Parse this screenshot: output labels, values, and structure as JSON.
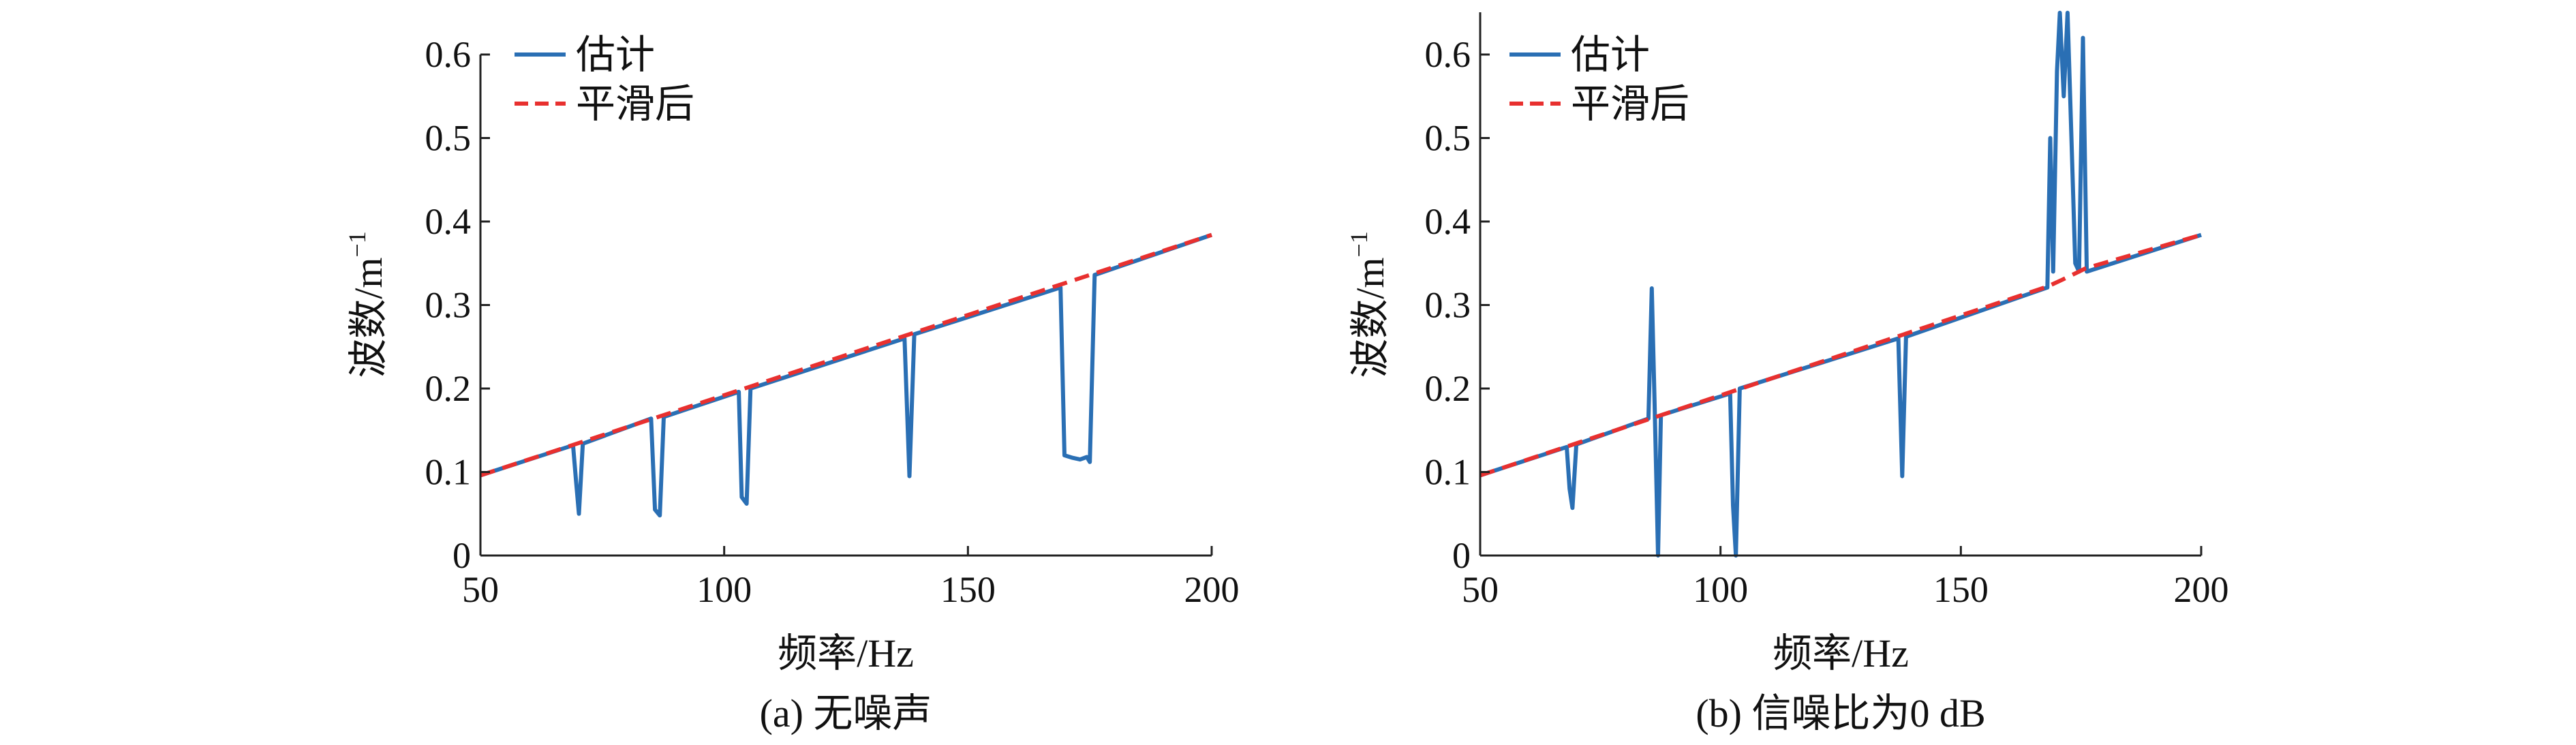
{
  "chart_data": [
    {
      "type": "line",
      "caption": "(a) 无噪声",
      "xlabel": "频率/Hz",
      "ylabel": "波数/m",
      "ylabel_sup": "−1",
      "xlim": [
        50,
        200
      ],
      "ylim": [
        0,
        0.6
      ],
      "xticks": [
        50,
        100,
        150,
        200
      ],
      "yticks": [
        0,
        0.1,
        0.2,
        0.3,
        0.4,
        0.5,
        0.6
      ],
      "ytick_labels": [
        "0",
        "0.1",
        "0.2",
        "0.3",
        "0.4",
        "0.5",
        "0.6"
      ],
      "grid": false,
      "legend_position": "top-left",
      "series": [
        {
          "name": "估计",
          "color": "#2a6fb4",
          "style": "solid",
          "points": [
            [
              50,
              0.096
            ],
            [
              69,
              0.132
            ],
            [
              69.6,
              0.09
            ],
            [
              70.2,
              0.05
            ],
            [
              71,
              0.134
            ],
            [
              85,
              0.164
            ],
            [
              85.8,
              0.055
            ],
            [
              86.8,
              0.048
            ],
            [
              87.6,
              0.166
            ],
            [
              103,
              0.196
            ],
            [
              103.6,
              0.07
            ],
            [
              104.6,
              0.062
            ],
            [
              105.4,
              0.2
            ],
            [
              137,
              0.26
            ],
            [
              138,
              0.095
            ],
            [
              139,
              0.265
            ],
            [
              169,
              0.321
            ],
            [
              169.8,
              0.12
            ],
            [
              171.5,
              0.117
            ],
            [
              173,
              0.115
            ],
            [
              174.4,
              0.118
            ],
            [
              175,
              0.112
            ],
            [
              176,
              0.336
            ],
            [
              200,
              0.384
            ]
          ]
        },
        {
          "name": "平滑后",
          "color": "#e8302f",
          "style": "dashed",
          "points": [
            [
              50,
              0.096
            ],
            [
              200,
              0.384
            ]
          ]
        }
      ]
    },
    {
      "type": "line",
      "caption": "(b) 信噪比为0 dB",
      "xlabel": "频率/Hz",
      "ylabel": "波数/m",
      "ylabel_sup": "−1",
      "xlim": [
        50,
        200
      ],
      "ylim": [
        0,
        0.6
      ],
      "xticks": [
        50,
        100,
        150,
        200
      ],
      "yticks": [
        0,
        0.1,
        0.2,
        0.3,
        0.4,
        0.5,
        0.6
      ],
      "ytick_labels": [
        "0",
        "0.1",
        "0.2",
        "0.3",
        "0.4",
        "0.5",
        "0.6"
      ],
      "grid": false,
      "legend_position": "top-left",
      "series": [
        {
          "name": "估计",
          "color": "#2a6fb4",
          "style": "solid",
          "points": [
            [
              50,
              0.096
            ],
            [
              68,
              0.13
            ],
            [
              68.6,
              0.08
            ],
            [
              69.2,
              0.057
            ],
            [
              70,
              0.133
            ],
            [
              85,
              0.164
            ],
            [
              85.7,
              0.32
            ],
            [
              86.3,
              0.18
            ],
            [
              87,
              0.0
            ],
            [
              87.6,
              0.168
            ],
            [
              102,
              0.194
            ],
            [
              102.6,
              0.06
            ],
            [
              103.2,
              0.0
            ],
            [
              104,
              0.2
            ],
            [
              137,
              0.26
            ],
            [
              137.8,
              0.095
            ],
            [
              138.6,
              0.262
            ],
            [
              168,
              0.321
            ],
            [
              168.6,
              0.5
            ],
            [
              169.2,
              0.34
            ],
            [
              170,
              0.58
            ],
            [
              170.6,
              0.65
            ],
            [
              171.4,
              0.55
            ],
            [
              172.2,
              0.65
            ],
            [
              173,
              0.5
            ],
            [
              173.8,
              0.35
            ],
            [
              174.6,
              0.34
            ],
            [
              175.4,
              0.62
            ],
            [
              176.2,
              0.34
            ],
            [
              200,
              0.384
            ]
          ]
        },
        {
          "name": "平滑后",
          "color": "#e8302f",
          "style": "dashed",
          "points": [
            [
              50,
              0.096
            ],
            [
              168,
              0.322
            ],
            [
              171,
              0.33
            ],
            [
              176,
              0.344
            ],
            [
              200,
              0.384
            ]
          ]
        }
      ]
    }
  ]
}
